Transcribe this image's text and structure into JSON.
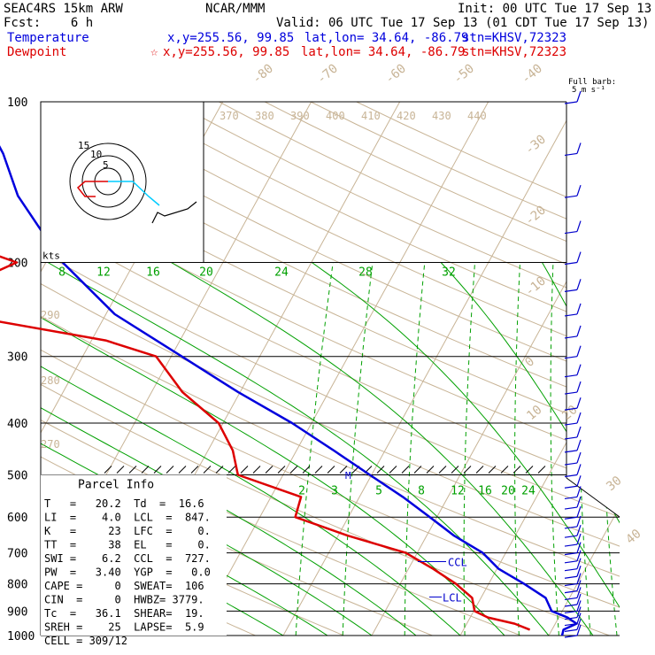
{
  "header": {
    "model": "SEAC4RS 15km ARW",
    "fcst": "Fcst:    6 h",
    "org": "NCAR/MMM",
    "init": "Init: 00 UTC Tue 17 Sep 13",
    "valid": "Valid: 06 UTC Tue 17 Sep 13 (01 CDT Tue 17 Sep 13)"
  },
  "legend": {
    "temperature": {
      "label": "Temperature",
      "xy": "x,y=255.56, 99.85",
      "latlon": "lat,lon= 34.64, -86.79",
      "stn": "stn=KHSV,72323"
    },
    "dewpoint": {
      "label": "Dewpoint",
      "xy": "x,y=255.56, 99.85",
      "latlon": "lat,lon= 34.64, -86.79",
      "stn": "stn=KHSV,72323"
    }
  },
  "barb_key": {
    "line1": "Full barb:",
    "line2": "5 m s⁻¹"
  },
  "hodograph": {
    "unit": "kts",
    "rings": [
      "5",
      "10",
      "15"
    ]
  },
  "parcel_info": {
    "title": "Parcel Info",
    "rows": [
      "T   =   20.2  Td  =  16.6",
      "LI  =    4.0  LCL  =  847.",
      "K   =     23  LFC  =    0.",
      "TT  =     38  EL   =    0.",
      "SWI =    6.2  CCL  =  727.",
      "PW  =   3.40  YGP  =   0.0",
      "CAPE =     0  SWEAT=  106",
      "CIN  =     0  HWBZ= 3779.",
      "Tc  =   36.1  SHEAR=  19.",
      "SREH =    25  LAPSE=  5.9",
      "CELL = 309/12"
    ]
  },
  "markers": {
    "m": "M",
    "ccl": "CCL",
    "lcl": "LCL"
  },
  "colors": {
    "temperature": "#0000dd",
    "dewpoint": "#dd0000",
    "isotherm": "#c8b496",
    "dry_adiabat": "#c8b496",
    "moist_adiabat": "#00a000",
    "mixing_ratio": "#00a000",
    "hodo_trace": "#00ccff",
    "barb": "#0000cc"
  },
  "chart_data": {
    "type": "line",
    "diagram": "Skew-T log-p",
    "y_axis": {
      "label": "",
      "scale": "log",
      "ticks": [
        100,
        200,
        300,
        400,
        500,
        600,
        700,
        800,
        900,
        1000
      ]
    },
    "isotherm_labels": [
      "-80",
      "-70",
      "-60",
      "-50",
      "-40",
      "-30",
      "-20",
      "-10",
      "0",
      "10",
      "20",
      "30",
      "40"
    ],
    "theta_labels_top": [
      "370",
      "380",
      "390",
      "400",
      "410",
      "420",
      "430",
      "440"
    ],
    "theta_labels_left": [
      "290",
      "280",
      "270"
    ],
    "mixing_ratio_labels_200": [
      "8",
      "12",
      "16",
      "20",
      "24",
      "28",
      "32"
    ],
    "mixing_ratio_labels_500": [
      "2",
      "3",
      "5",
      "8",
      "12",
      "16",
      "20",
      "24"
    ],
    "series": [
      {
        "name": "Temperature",
        "p": [
          1000,
          975,
          950,
          925,
          900,
          850,
          800,
          750,
          700,
          650,
          600,
          550,
          500,
          450,
          400,
          350,
          300,
          250,
          200,
          150,
          125,
          100
        ],
        "temp": [
          21.5,
          21.3,
          22.4,
          21.0,
          18.8,
          17.3,
          14.0,
          10.2,
          7.4,
          3.1,
          -0.8,
          -5.1,
          -10.2,
          -15.8,
          -22.2,
          -30.2,
          -38.8,
          -49.0,
          -58.1,
          -67.3,
          -71.6,
          -77.9
        ]
      },
      {
        "name": "Dewpoint",
        "p": [
          975,
          950,
          925,
          900,
          850,
          800,
          750,
          700,
          650,
          600,
          550,
          500,
          450,
          400,
          350,
          300,
          280,
          250,
          225,
          200,
          175,
          150,
          125,
          100
        ],
        "temp": [
          17.5,
          15.4,
          12.0,
          10.1,
          9.0,
          6.3,
          2.8,
          -1.3,
          -8.9,
          -16.0,
          -16.6,
          -25.1,
          -27.2,
          -30.5,
          -36.5,
          -41.7,
          -48.4,
          -66.8,
          -68.4,
          -63.3,
          -75.1,
          -89.6,
          -91.6,
          -95.8
        ]
      }
    ]
  }
}
